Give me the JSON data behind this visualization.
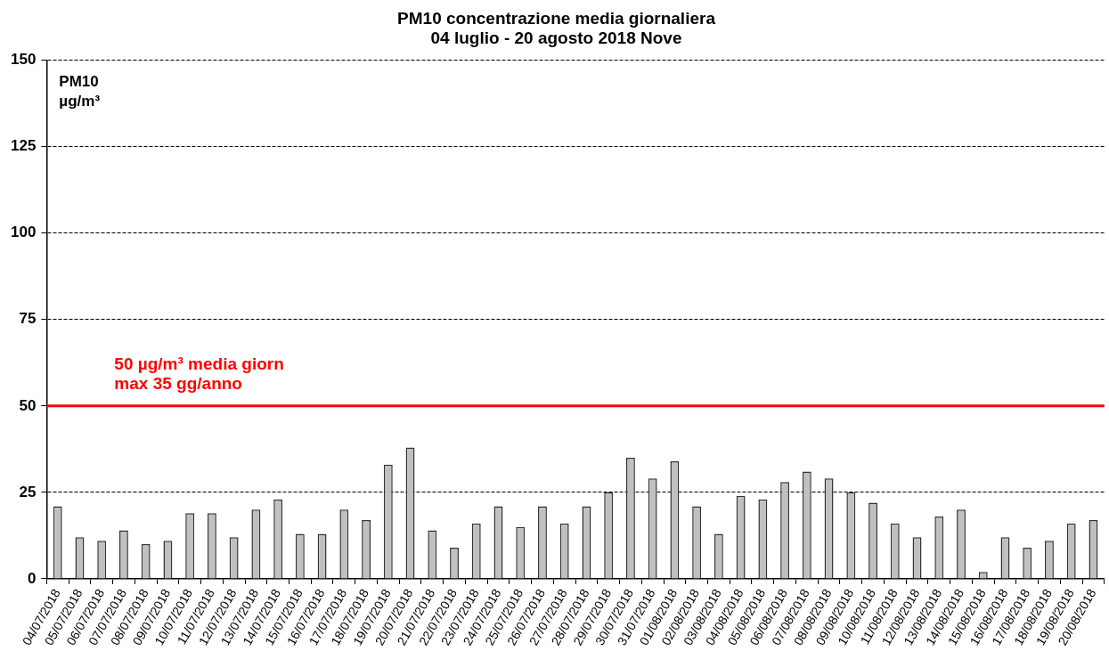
{
  "chart_data": {
    "type": "bar",
    "title": "PM10 concentrazione media giornaliera",
    "subtitle": "04 luglio - 20 agosto 2018 Nove",
    "ylabel": "PM10\nµg/m³",
    "categories": [
      "04/07/2018",
      "05/07/2018",
      "06/07/2018",
      "07/07/2018",
      "08/07/2018",
      "09/07/2018",
      "10/07/2018",
      "11/07/2018",
      "12/07/2018",
      "13/07/2018",
      "14/07/2018",
      "15/07/2018",
      "16/07/2018",
      "17/07/2018",
      "18/07/2018",
      "19/07/2018",
      "20/07/2018",
      "21/07/2018",
      "22/07/2018",
      "23/07/2018",
      "24/07/2018",
      "25/07/2018",
      "26/07/2018",
      "27/07/2018",
      "28/07/2018",
      "29/07/2018",
      "30/07/2018",
      "31/07/2018",
      "01/08/2018",
      "02/08/2018",
      "03/08/2018",
      "04/08/2018",
      "05/08/2018",
      "06/08/2018",
      "07/08/2018",
      "08/08/2018",
      "09/08/2018",
      "10/08/2018",
      "11/08/2018",
      "12/08/2018",
      "13/08/2018",
      "14/08/2018",
      "15/08/2018",
      "16/08/2018",
      "17/08/2018",
      "18/08/2018",
      "19/08/2018",
      "20/08/2018"
    ],
    "values": [
      21,
      12,
      11,
      14,
      10,
      11,
      19,
      19,
      12,
      20,
      23,
      13,
      13,
      20,
      17,
      33,
      38,
      14,
      9,
      16,
      21,
      15,
      21,
      16,
      21,
      25,
      35,
      29,
      34,
      21,
      13,
      24,
      23,
      28,
      31,
      29,
      25,
      22,
      16,
      12,
      18,
      20,
      2,
      12,
      9,
      11,
      16,
      17
    ],
    "color": "#c0c0c0",
    "ylim": [
      0,
      150
    ],
    "yticks": [
      0,
      25,
      50,
      75,
      100,
      125,
      150
    ],
    "grid": "y",
    "ref_lines": [
      {
        "axis": "y",
        "value": 50,
        "label": "50 µg/m³ media giorn\nmax 35 gg/anno",
        "color": "#ff0000",
        "line_style": "solid"
      }
    ]
  }
}
